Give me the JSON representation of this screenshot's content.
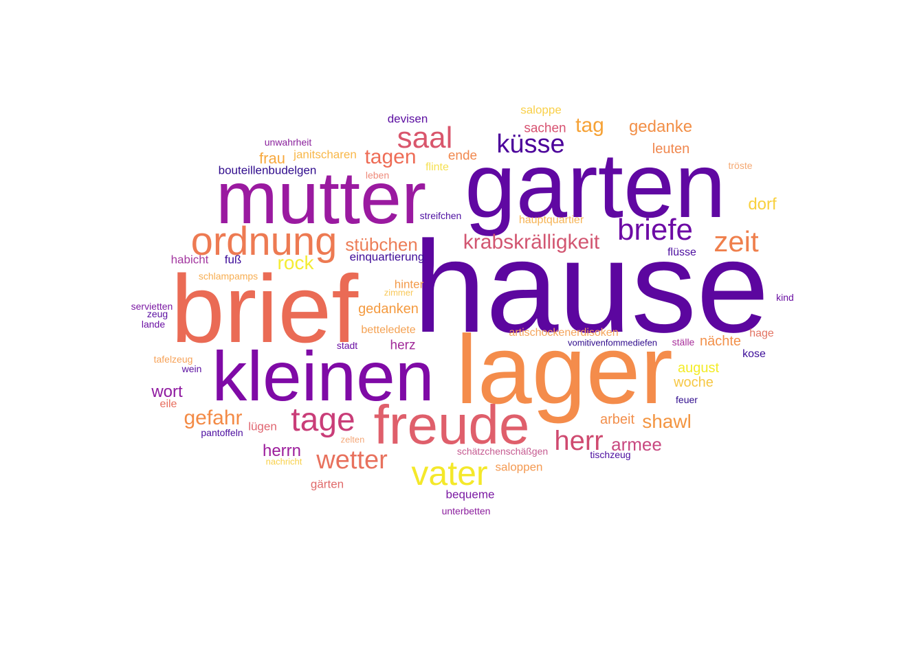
{
  "cloud": {
    "words": [
      {
        "text": "hause",
        "color": "#5c069f"
      },
      {
        "text": "garten",
        "color": "#6008a2"
      },
      {
        "text": "lager",
        "color": "#f48c4b"
      },
      {
        "text": "brief",
        "color": "#ea6b55"
      },
      {
        "text": "kleinen",
        "color": "#7f0aa6"
      },
      {
        "text": "mutter",
        "color": "#9a1aa0"
      },
      {
        "text": "freude",
        "color": "#df5f6b"
      },
      {
        "text": "ordnung",
        "color": "#ed7a52"
      },
      {
        "text": "vater",
        "color": "#f4e82a"
      },
      {
        "text": "tage",
        "color": "#c93d78"
      },
      {
        "text": "saal",
        "color": "#d9566c"
      },
      {
        "text": "briefe",
        "color": "#6d0ba5"
      },
      {
        "text": "küsse",
        "color": "#4c039b"
      },
      {
        "text": "zeit",
        "color": "#ef7f4c"
      },
      {
        "text": "herr",
        "color": "#cf4a70"
      },
      {
        "text": "wetter",
        "color": "#e8715d"
      },
      {
        "text": "krabskrälligkeit",
        "color": "#d25671"
      },
      {
        "text": "stübchen",
        "color": "#ec7d57"
      },
      {
        "text": "tagen",
        "color": "#ee6c56"
      },
      {
        "text": "tag",
        "color": "#f6a236"
      },
      {
        "text": "gedanke",
        "color": "#f28f47"
      },
      {
        "text": "gefahr",
        "color": "#f38a45"
      },
      {
        "text": "rock",
        "color": "#f4ec34"
      },
      {
        "text": "shawl",
        "color": "#f39541"
      },
      {
        "text": "armee",
        "color": "#c84880"
      },
      {
        "text": "wort",
        "color": "#8f1ba0"
      },
      {
        "text": "herrn",
        "color": "#9c1d9c"
      },
      {
        "text": "dorf",
        "color": "#f8d03e"
      },
      {
        "text": "leuten",
        "color": "#f0874e"
      },
      {
        "text": "frau",
        "color": "#f7a83d"
      },
      {
        "text": "gedanken",
        "color": "#f49a3f"
      },
      {
        "text": "arbeit",
        "color": "#f28e4a"
      },
      {
        "text": "august",
        "color": "#f3ec26"
      },
      {
        "text": "woche",
        "color": "#f6c744"
      },
      {
        "text": "nächte",
        "color": "#f2904a"
      },
      {
        "text": "sachen",
        "color": "#d75271"
      },
      {
        "text": "devisen",
        "color": "#5a0da0"
      },
      {
        "text": "saloppe",
        "color": "#f9d04a"
      },
      {
        "text": "ende",
        "color": "#f1884e"
      },
      {
        "text": "bouteillenbudelgen",
        "color": "#2f0b8c"
      },
      {
        "text": "janitscharen",
        "color": "#f8b748"
      },
      {
        "text": "unwahrheit",
        "color": "#8a219c"
      },
      {
        "text": "flinte",
        "color": "#f5e050"
      },
      {
        "text": "leben",
        "color": "#ee8a7a"
      },
      {
        "text": "tröste",
        "color": "#f4a872"
      },
      {
        "text": "streifchen",
        "color": "#4c0fa0"
      },
      {
        "text": "hauptquartier",
        "color": "#f6b456"
      },
      {
        "text": "habicht",
        "color": "#a338a0"
      },
      {
        "text": "fuß",
        "color": "#3b0a98"
      },
      {
        "text": "einquartierung",
        "color": "#3f0c98"
      },
      {
        "text": "flüsse",
        "color": "#4a0b9e"
      },
      {
        "text": "schlampamps",
        "color": "#f7ae52"
      },
      {
        "text": "hinter",
        "color": "#f39a4a"
      },
      {
        "text": "zimmer",
        "color": "#f8c85a"
      },
      {
        "text": "servietten",
        "color": "#7b1aa3"
      },
      {
        "text": "zeug",
        "color": "#5a0ea0"
      },
      {
        "text": "lande",
        "color": "#6a10a3"
      },
      {
        "text": "kind",
        "color": "#6a0fa2"
      },
      {
        "text": "betteledete",
        "color": "#f4a152"
      },
      {
        "text": "artischockenerdisoken",
        "color": "#f4a35a"
      },
      {
        "text": "vomitivenfommediefen",
        "color": "#2f0b8c"
      },
      {
        "text": "ställe",
        "color": "#a72d9a"
      },
      {
        "text": "hage",
        "color": "#e27362"
      },
      {
        "text": "stadt",
        "color": "#6a10a3"
      },
      {
        "text": "herz",
        "color": "#a02898"
      },
      {
        "text": "kose",
        "color": "#3a0a98"
      },
      {
        "text": "tafelzeug",
        "color": "#f6a258"
      },
      {
        "text": "wein",
        "color": "#5a0ea0"
      },
      {
        "text": "eile",
        "color": "#e76c5c"
      },
      {
        "text": "feuer",
        "color": "#2f0b8c"
      },
      {
        "text": "pantoffeln",
        "color": "#4a0b9e"
      },
      {
        "text": "lügen",
        "color": "#e06570"
      },
      {
        "text": "zelten",
        "color": "#f4a87a"
      },
      {
        "text": "schätzchenschäßgen",
        "color": "#c55a90"
      },
      {
        "text": "tischzeug",
        "color": "#4a0b9e"
      },
      {
        "text": "nachricht",
        "color": "#f8d04a"
      },
      {
        "text": "saloppen",
        "color": "#f49a52"
      },
      {
        "text": "gärten",
        "color": "#e06a6a"
      },
      {
        "text": "bequeme",
        "color": "#7b1aa3"
      },
      {
        "text": "unterbetten",
        "color": "#8a1c9d"
      }
    ]
  }
}
